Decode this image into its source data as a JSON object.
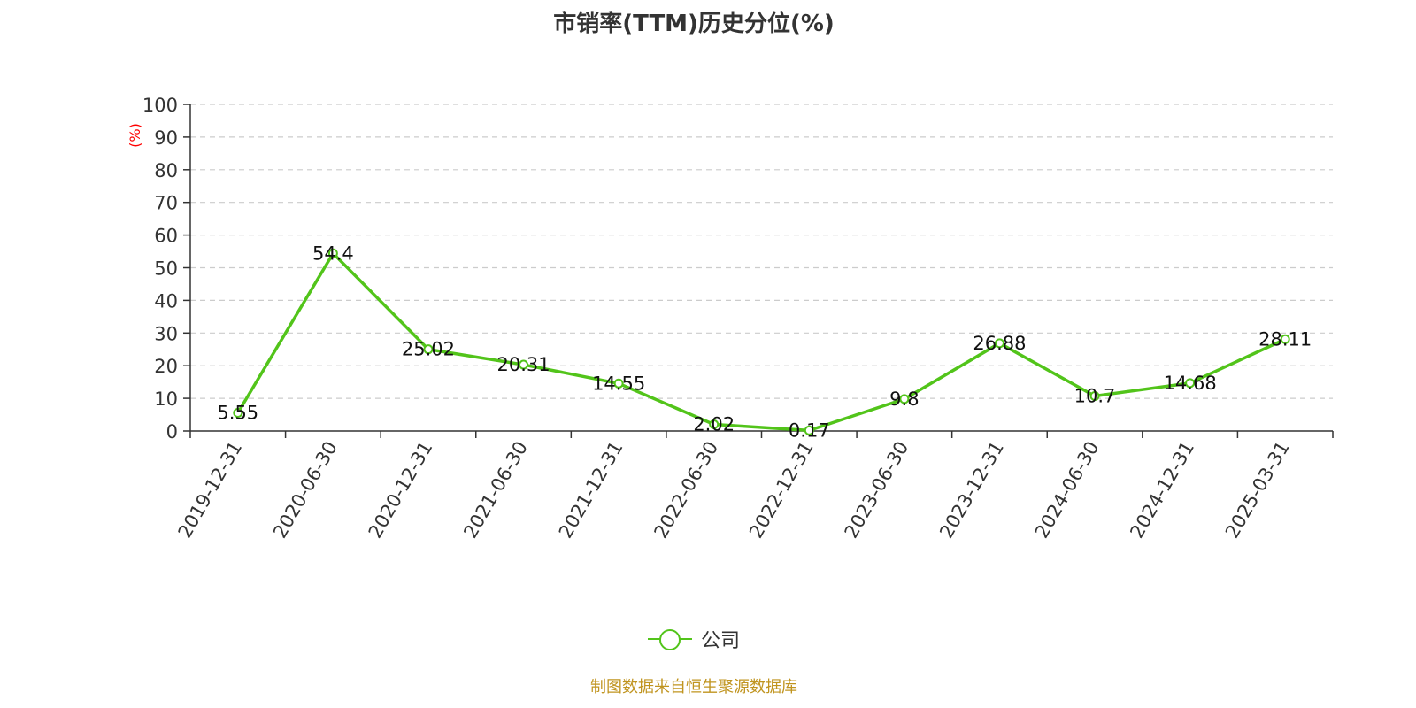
{
  "title": "市销率(TTM)历史分位(%)",
  "source": "制图数据来自恒生聚源数据库",
  "colors": {
    "series": "#52c41a",
    "ylabel": "#ff0000",
    "axis": "#333333",
    "grid": "#cccccc",
    "source": "#c0941f"
  },
  "legend": {
    "label": "公司",
    "icon": "line-circle-icon",
    "position": "bottom-center"
  },
  "chart_data": {
    "type": "line",
    "title": "市销率(TTM)历史分位(%)",
    "xlabel": "",
    "ylabel": "(%)",
    "ylim": [
      0,
      100
    ],
    "yticks": [
      0,
      10,
      20,
      30,
      40,
      50,
      60,
      70,
      80,
      90,
      100
    ],
    "grid": true,
    "legend_position": "bottom",
    "categories": [
      "2019-12-31",
      "2020-06-30",
      "2020-12-31",
      "2021-06-30",
      "2021-12-31",
      "2022-06-30",
      "2022-12-31",
      "2023-06-30",
      "2023-12-31",
      "2024-06-30",
      "2024-12-31",
      "2025-03-31"
    ],
    "series": [
      {
        "name": "公司",
        "values": [
          5.55,
          54.4,
          25.02,
          20.31,
          14.55,
          2.02,
          0.17,
          9.8,
          26.88,
          10.7,
          14.68,
          28.11
        ]
      }
    ]
  }
}
